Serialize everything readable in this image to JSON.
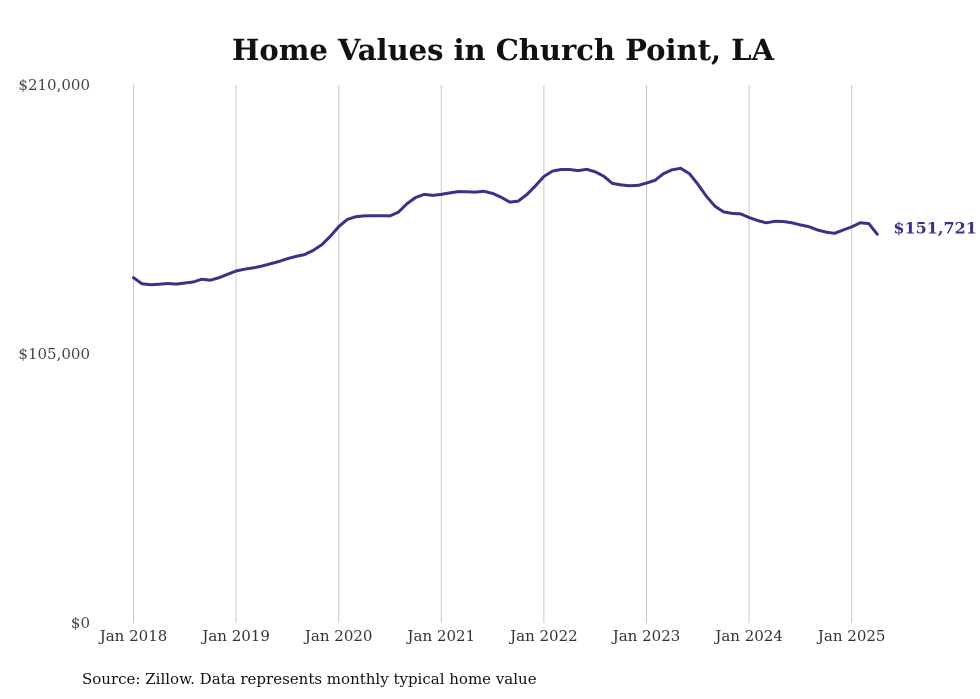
{
  "chart_data": {
    "type": "line",
    "title": "Home Values in Church Point, LA",
    "xlabel": "",
    "ylabel": "",
    "ylim": [
      0,
      210000
    ],
    "y_ticks": [
      {
        "value": 0,
        "label": "$0"
      },
      {
        "value": 105000,
        "label": "$105,000"
      },
      {
        "value": 210000,
        "label": "$210,000"
      }
    ],
    "x_ticks": [
      {
        "value": 2018,
        "label": "Jan 2018"
      },
      {
        "value": 2019,
        "label": "Jan 2019"
      },
      {
        "value": 2020,
        "label": "Jan 2020"
      },
      {
        "value": 2021,
        "label": "Jan 2021"
      },
      {
        "value": 2022,
        "label": "Jan 2022"
      },
      {
        "value": 2023,
        "label": "Jan 2023"
      },
      {
        "value": 2024,
        "label": "Jan 2024"
      },
      {
        "value": 2025,
        "label": "Jan 2025"
      }
    ],
    "xlim": [
      "2018-01",
      "2025-04"
    ],
    "grid": "vertical",
    "legend": "none",
    "line_color": "#3b3187",
    "end_label": "$151,721",
    "series": [
      {
        "x": [
          "2018-01",
          "2018-02",
          "2018-03",
          "2018-04",
          "2018-05",
          "2018-06",
          "2018-07",
          "2018-08",
          "2018-09",
          "2018-10",
          "2018-11",
          "2018-12",
          "2019-01",
          "2019-02",
          "2019-03",
          "2019-04",
          "2019-05",
          "2019-06",
          "2019-07",
          "2019-08",
          "2019-09",
          "2019-10",
          "2019-11",
          "2019-12",
          "2020-01",
          "2020-02",
          "2020-03",
          "2020-04",
          "2020-05",
          "2020-06",
          "2020-07",
          "2020-08",
          "2020-09",
          "2020-10",
          "2020-11",
          "2020-12",
          "2021-01",
          "2021-02",
          "2021-03",
          "2021-04",
          "2021-05",
          "2021-06",
          "2021-07",
          "2021-08",
          "2021-09",
          "2021-10",
          "2021-11",
          "2021-12",
          "2022-01",
          "2022-02",
          "2022-03",
          "2022-04",
          "2022-05",
          "2022-06",
          "2022-07",
          "2022-08",
          "2022-09",
          "2022-10",
          "2022-11",
          "2022-12",
          "2023-01",
          "2023-02",
          "2023-03",
          "2023-04",
          "2023-05",
          "2023-06",
          "2023-07",
          "2023-08",
          "2023-09",
          "2023-10",
          "2023-11",
          "2023-12",
          "2024-01",
          "2024-02",
          "2024-03",
          "2024-04",
          "2024-05",
          "2024-06",
          "2024-07",
          "2024-08",
          "2024-09",
          "2024-10",
          "2024-11",
          "2024-12",
          "2025-01",
          "2025-02",
          "2025-03",
          "2025-04"
        ],
        "values": [
          134800,
          132400,
          132000,
          132200,
          132500,
          132300,
          132700,
          133100,
          134200,
          133800,
          134800,
          136100,
          137400,
          138100,
          138600,
          139300,
          140200,
          141100,
          142200,
          143100,
          143800,
          145400,
          147600,
          150900,
          154700,
          157500,
          158600,
          158900,
          159000,
          159000,
          158900,
          160400,
          163700,
          166100,
          167300,
          166900,
          167300,
          167900,
          168400,
          168300,
          168200,
          168500,
          167700,
          166200,
          164300,
          164700,
          167200,
          170600,
          174300,
          176400,
          177000,
          177000,
          176600,
          177100,
          176100,
          174400,
          171600,
          171000,
          170700,
          170800,
          171700,
          172800,
          175400,
          176900,
          177500,
          175400,
          171300,
          166600,
          162700,
          160500,
          159900,
          159700,
          158300,
          157100,
          156200,
          156800,
          156700,
          156200,
          155400,
          154700,
          153400,
          152600,
          152100,
          153400,
          154600,
          156200,
          155900,
          151721
        ]
      }
    ]
  },
  "source_note": "Source: Zillow. Data represents monthly typical home value"
}
